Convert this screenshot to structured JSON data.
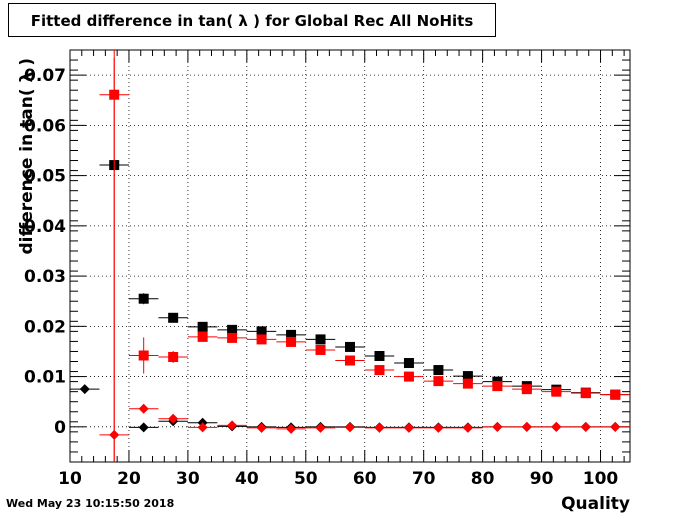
{
  "title": "Fitted difference in tan( λ ) for Global Rec All NoHits",
  "timestamp": "Wed May 23 10:15:50 2018",
  "chart_data": {
    "type": "scatter",
    "title": "Fitted difference in tan( λ ) for Global Rec All NoHits",
    "xlabel": "Quality",
    "ylabel": "difference in tan( λ )",
    "xlim": [
      10,
      105
    ],
    "ylim": [
      -0.007,
      0.075
    ],
    "grid": true,
    "x_ticks": [
      10,
      20,
      30,
      40,
      50,
      60,
      70,
      80,
      90,
      100
    ],
    "x_tick_labels": [
      "10",
      "20",
      "30",
      "40",
      "50",
      "60",
      "70",
      "80",
      "90",
      "100"
    ],
    "y_ticks": [
      0,
      0.01,
      0.02,
      0.03,
      0.04,
      0.05,
      0.06,
      0.07
    ],
    "y_tick_labels": [
      "0",
      "0.01",
      "0.02",
      "0.03",
      "0.04",
      "0.05",
      "0.06",
      "0.07"
    ],
    "series": [
      {
        "color": "#000000",
        "marker": "square",
        "points": [
          {
            "x": 17.5,
            "y": 0.0521,
            "yerr": 0.0003
          },
          {
            "x": 22.5,
            "y": 0.0255,
            "yerr": 0.0011
          },
          {
            "x": 27.5,
            "y": 0.0217,
            "yerr": 0.0005
          },
          {
            "x": 32.5,
            "y": 0.0199,
            "yerr": 0.0003
          },
          {
            "x": 37.5,
            "y": 0.0193,
            "yerr": 0.0003
          },
          {
            "x": 42.5,
            "y": 0.019,
            "yerr": 0.0003
          },
          {
            "x": 47.5,
            "y": 0.0183,
            "yerr": 0.0003
          },
          {
            "x": 52.5,
            "y": 0.0174,
            "yerr": 0.0003
          },
          {
            "x": 57.5,
            "y": 0.0159,
            "yerr": 0.0003
          },
          {
            "x": 62.5,
            "y": 0.0141,
            "yerr": 0.0003
          },
          {
            "x": 67.5,
            "y": 0.0127,
            "yerr": 0.0003
          },
          {
            "x": 72.5,
            "y": 0.0113,
            "yerr": 0.0003
          },
          {
            "x": 77.5,
            "y": 0.0101,
            "yerr": 0.0003
          },
          {
            "x": 82.5,
            "y": 0.009,
            "yerr": 0.0003
          },
          {
            "x": 87.5,
            "y": 0.0081,
            "yerr": 0.0003
          },
          {
            "x": 92.5,
            "y": 0.0074,
            "yerr": 0.0003
          },
          {
            "x": 97.5,
            "y": 0.0068,
            "yerr": 0.0003
          },
          {
            "x": 102.5,
            "y": 0.0064,
            "yerr": 0.0003
          }
        ]
      },
      {
        "color": "#ff0000",
        "marker": "square",
        "points": [
          {
            "x": 17.5,
            "y": 0.0661,
            "yerr": 0.075
          },
          {
            "x": 22.5,
            "y": 0.0142,
            "yerr": 0.0036
          },
          {
            "x": 27.5,
            "y": 0.0139,
            "yerr": 0.0012
          },
          {
            "x": 32.5,
            "y": 0.0179,
            "yerr": 0.0008
          },
          {
            "x": 37.5,
            "y": 0.0177,
            "yerr": 0.0006
          },
          {
            "x": 42.5,
            "y": 0.0174,
            "yerr": 0.0005
          },
          {
            "x": 47.5,
            "y": 0.0169,
            "yerr": 0.0005
          },
          {
            "x": 52.5,
            "y": 0.0153,
            "yerr": 0.0004
          },
          {
            "x": 57.5,
            "y": 0.0132,
            "yerr": 0.0004
          },
          {
            "x": 62.5,
            "y": 0.0113,
            "yerr": 0.0004
          },
          {
            "x": 67.5,
            "y": 0.01,
            "yerr": 0.0004
          },
          {
            "x": 72.5,
            "y": 0.0091,
            "yerr": 0.0003
          },
          {
            "x": 77.5,
            "y": 0.0086,
            "yerr": 0.0003
          },
          {
            "x": 82.5,
            "y": 0.0081,
            "yerr": 0.0003
          },
          {
            "x": 87.5,
            "y": 0.0075,
            "yerr": 0.0003
          },
          {
            "x": 92.5,
            "y": 0.007,
            "yerr": 0.0003
          },
          {
            "x": 97.5,
            "y": 0.0067,
            "yerr": 0.0003
          },
          {
            "x": 102.5,
            "y": 0.0064,
            "yerr": 0.0003
          }
        ]
      },
      {
        "color": "#000000",
        "marker": "diamond",
        "points": [
          {
            "x": 12.5,
            "y": 0.0075,
            "yerr": 0.0002
          },
          {
            "x": 22.5,
            "y": -0.0001,
            "yerr": 0.0005
          },
          {
            "x": 27.5,
            "y": 0.0011,
            "yerr": 0.0004
          },
          {
            "x": 32.5,
            "y": 0.0008,
            "yerr": 0.0002
          },
          {
            "x": 37.5,
            "y": 0.0001,
            "yerr": 0.0002
          },
          {
            "x": 42.5,
            "y": 0.0,
            "yerr": 0.0002
          },
          {
            "x": 47.5,
            "y": -0.0001,
            "yerr": 0.0002
          },
          {
            "x": 52.5,
            "y": 0.0,
            "yerr": 0.0002
          },
          {
            "x": 57.5,
            "y": 0.0,
            "yerr": 0.0002
          },
          {
            "x": 62.5,
            "y": -0.0001,
            "yerr": 0.0002
          },
          {
            "x": 67.5,
            "y": -0.0001,
            "yerr": 0.0002
          },
          {
            "x": 72.5,
            "y": -0.0001,
            "yerr": 0.0002
          },
          {
            "x": 77.5,
            "y": -0.0001,
            "yerr": 0.0002
          },
          {
            "x": 82.5,
            "y": 0.0,
            "yerr": 0.0002
          },
          {
            "x": 87.5,
            "y": 0.0,
            "yerr": 0.0002
          },
          {
            "x": 92.5,
            "y": 0.0,
            "yerr": 0.0002
          },
          {
            "x": 97.5,
            "y": 0.0,
            "yerr": 0.0002
          },
          {
            "x": 102.5,
            "y": 0.0,
            "yerr": 0.0002
          }
        ]
      },
      {
        "color": "#ff0000",
        "marker": "diamond",
        "points": [
          {
            "x": 17.5,
            "y": -0.0016,
            "yerr": 0.075
          },
          {
            "x": 22.5,
            "y": 0.0036,
            "yerr": 0.0009
          },
          {
            "x": 27.5,
            "y": 0.0016,
            "yerr": 0.0005
          },
          {
            "x": 32.5,
            "y": -0.0001,
            "yerr": 0.0003
          },
          {
            "x": 37.5,
            "y": 0.0003,
            "yerr": 0.0002
          },
          {
            "x": 42.5,
            "y": -0.0002,
            "yerr": 0.0002
          },
          {
            "x": 47.5,
            "y": -0.0004,
            "yerr": 0.0002
          },
          {
            "x": 52.5,
            "y": -0.0002,
            "yerr": 0.0002
          },
          {
            "x": 57.5,
            "y": -0.0001,
            "yerr": 0.0002
          },
          {
            "x": 62.5,
            "y": -0.0002,
            "yerr": 0.0002
          },
          {
            "x": 67.5,
            "y": -0.0002,
            "yerr": 0.0002
          },
          {
            "x": 72.5,
            "y": -0.0002,
            "yerr": 0.0002
          },
          {
            "x": 77.5,
            "y": -0.0002,
            "yerr": 0.0002
          },
          {
            "x": 82.5,
            "y": 0.0,
            "yerr": 0.0002
          },
          {
            "x": 87.5,
            "y": 0.0,
            "yerr": 0.0002
          },
          {
            "x": 92.5,
            "y": 0.0,
            "yerr": 0.0002
          },
          {
            "x": 97.5,
            "y": 0.0,
            "yerr": 0.0002
          },
          {
            "x": 102.5,
            "y": 0.0,
            "yerr": 0.0002
          }
        ]
      }
    ],
    "bin_width": 5
  }
}
